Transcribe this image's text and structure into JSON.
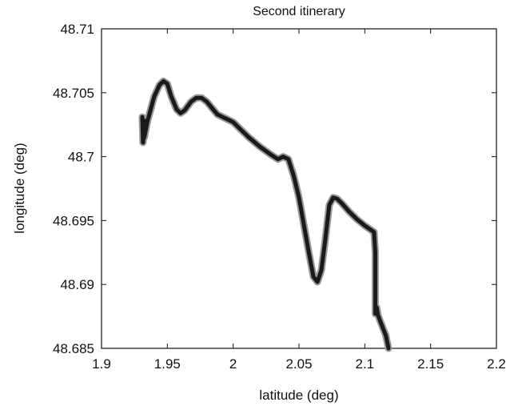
{
  "chart_data": {
    "type": "line",
    "title": "Second itinerary",
    "xlabel": "latitude (deg)",
    "ylabel": "longitude (deg)",
    "xlim": [
      1.9,
      2.2
    ],
    "ylim": [
      48.685,
      48.71
    ],
    "x_ticks": [
      1.9,
      1.95,
      2,
      2.05,
      2.1,
      2.15,
      2.2
    ],
    "x_tick_labels": [
      "1.9",
      "1.95",
      "2",
      "2.05",
      "2.1",
      "2.15",
      "2.2"
    ],
    "y_ticks": [
      48.685,
      48.69,
      48.695,
      48.7,
      48.705,
      48.71
    ],
    "y_tick_labels": [
      "48.685",
      "48.69",
      "48.695",
      "48.7",
      "48.705",
      "48.71"
    ],
    "grid": false,
    "legend": false,
    "line_color": "#1a1a1a",
    "series": [
      {
        "x": [
          1.931,
          1.9315,
          1.933,
          1.932,
          1.9325,
          1.935,
          1.94,
          1.944,
          1.947,
          1.95,
          1.953,
          1.957,
          1.96,
          1.963,
          1.968,
          1.972,
          1.976,
          1.98,
          1.984,
          1.988,
          1.992,
          1.996,
          2.0,
          2.006,
          2.012,
          2.02,
          2.028,
          2.034,
          2.038,
          2.042,
          2.046,
          2.05,
          2.054,
          2.058,
          2.061,
          2.064,
          2.067,
          2.07,
          2.073,
          2.076,
          2.079,
          2.083,
          2.088,
          2.094,
          2.1,
          2.107,
          2.108,
          2.108,
          2.108,
          2.108,
          2.109,
          2.11,
          2.113,
          2.116,
          2.118
        ],
        "y": [
          48.7031,
          48.7011,
          48.7028,
          48.7021,
          48.7015,
          48.7028,
          48.7047,
          48.7056,
          48.7059,
          48.7057,
          48.7047,
          48.7037,
          48.7034,
          48.7036,
          48.7043,
          48.7046,
          48.7046,
          48.7043,
          48.7038,
          48.7033,
          48.7031,
          48.7029,
          48.7027,
          48.7021,
          48.7015,
          48.7008,
          48.7002,
          48.6998,
          48.7,
          48.6998,
          48.6985,
          48.6968,
          48.6945,
          48.6922,
          48.6906,
          48.6902,
          48.6911,
          48.6935,
          48.6962,
          48.6968,
          48.6967,
          48.6963,
          48.6957,
          48.6951,
          48.6946,
          48.6941,
          48.6925,
          48.6905,
          48.6885,
          48.6877,
          48.6882,
          48.6876,
          48.6868,
          48.686,
          48.685
        ]
      }
    ]
  }
}
